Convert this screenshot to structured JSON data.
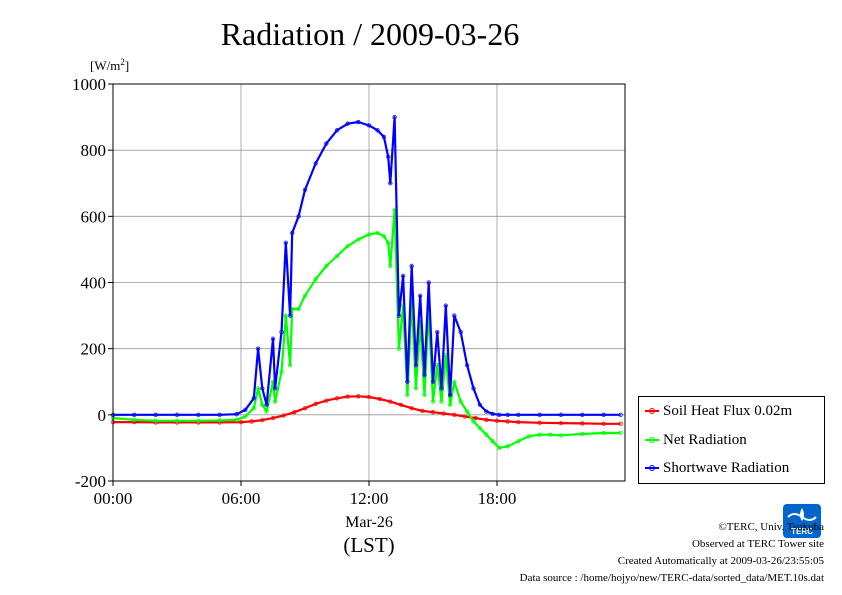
{
  "chart_data": {
    "type": "line",
    "title": "Radiation / 2009-03-26",
    "unit_label": "[W/m2]",
    "unit_base": "[W/m",
    "unit_sup": "2",
    "unit_close": "]",
    "xlabel": "(LST)",
    "date_label": "Mar-26",
    "xlim": [
      0,
      24
    ],
    "ylim": [
      -200,
      1000
    ],
    "xticks": [
      {
        "value": 0,
        "label": "00:00"
      },
      {
        "value": 6,
        "label": "06:00"
      },
      {
        "value": 12,
        "label": "12:00"
      },
      {
        "value": 18,
        "label": "18:00"
      }
    ],
    "yticks": [
      {
        "value": -200,
        "label": "-200"
      },
      {
        "value": 0,
        "label": "0"
      },
      {
        "value": 200,
        "label": "200"
      },
      {
        "value": 400,
        "label": "400"
      },
      {
        "value": 600,
        "label": "600"
      },
      {
        "value": 800,
        "label": "800"
      },
      {
        "value": 1000,
        "label": "1000"
      }
    ],
    "grid": true,
    "legend_position": "right",
    "series": [
      {
        "name": "Soil Heat Flux 0.02m",
        "color": "#ff0000",
        "x": [
          0,
          1,
          2,
          3,
          4,
          5,
          6,
          6.5,
          7,
          7.5,
          8,
          8.5,
          9,
          9.5,
          10,
          10.5,
          11,
          11.5,
          12,
          12.5,
          13,
          13.5,
          14,
          14.5,
          15,
          15.5,
          16,
          16.5,
          17,
          17.5,
          18,
          18.5,
          19,
          20,
          21,
          22,
          23,
          23.8
        ],
        "y": [
          -22,
          -22,
          -23,
          -23,
          -23,
          -23,
          -22,
          -20,
          -16,
          -10,
          -2,
          8,
          20,
          33,
          43,
          50,
          55,
          56,
          54,
          48,
          40,
          30,
          20,
          12,
          8,
          4,
          0,
          -5,
          -10,
          -15,
          -18,
          -20,
          -22,
          -24,
          -25,
          -26,
          -27,
          -27
        ]
      },
      {
        "name": "Net Radiation",
        "color": "#00ff00",
        "x": [
          0,
          1,
          2,
          3,
          4,
          5,
          5.8,
          6.2,
          6.6,
          6.8,
          7.0,
          7.2,
          7.5,
          7.6,
          7.9,
          8.1,
          8.3,
          8.4,
          8.7,
          9,
          9.5,
          10,
          10.5,
          11,
          11.5,
          12,
          12.4,
          12.7,
          12.9,
          13.0,
          13.2,
          13.4,
          13.6,
          13.8,
          14.0,
          14.2,
          14.4,
          14.6,
          14.8,
          15.0,
          15.2,
          15.4,
          15.6,
          15.8,
          16.0,
          16.3,
          16.6,
          16.9,
          17.2,
          17.5,
          17.8,
          18.1,
          18.5,
          19,
          19.5,
          20,
          20.5,
          21,
          22,
          23,
          23.8
        ],
        "y": [
          -10,
          -15,
          -18,
          -18,
          -18,
          -17,
          -15,
          -5,
          20,
          80,
          30,
          10,
          100,
          40,
          130,
          300,
          150,
          320,
          320,
          360,
          410,
          450,
          480,
          510,
          530,
          545,
          550,
          540,
          520,
          450,
          620,
          200,
          330,
          60,
          350,
          80,
          280,
          60,
          320,
          40,
          150,
          40,
          180,
          30,
          100,
          40,
          10,
          -20,
          -40,
          -60,
          -80,
          -100,
          -95,
          -80,
          -65,
          -60,
          -60,
          -62,
          -58,
          -55,
          -55
        ]
      },
      {
        "name": "Shortwave Radiation",
        "color": "#0000ff",
        "x": [
          0,
          1,
          2,
          3,
          4,
          5,
          5.8,
          6.2,
          6.6,
          6.8,
          7.0,
          7.2,
          7.5,
          7.6,
          7.9,
          8.1,
          8.3,
          8.4,
          8.7,
          9,
          9.5,
          10,
          10.5,
          11,
          11.5,
          12,
          12.4,
          12.7,
          12.9,
          13.0,
          13.2,
          13.4,
          13.6,
          13.8,
          14.0,
          14.2,
          14.4,
          14.6,
          14.8,
          15.0,
          15.2,
          15.4,
          15.6,
          15.8,
          16.0,
          16.3,
          16.6,
          16.9,
          17.2,
          17.5,
          17.8,
          18.1,
          18.5,
          19,
          20,
          21,
          22,
          23,
          23.8
        ],
        "y": [
          0,
          0,
          0,
          0,
          0,
          0,
          2,
          15,
          50,
          200,
          80,
          30,
          230,
          80,
          250,
          520,
          300,
          550,
          600,
          680,
          760,
          820,
          860,
          880,
          885,
          875,
          860,
          840,
          780,
          700,
          900,
          300,
          420,
          100,
          450,
          150,
          360,
          120,
          400,
          100,
          250,
          80,
          330,
          60,
          300,
          250,
          150,
          80,
          30,
          10,
          3,
          0,
          0,
          0,
          0,
          0,
          0,
          0,
          0
        ]
      }
    ]
  },
  "footer": {
    "copyright": "©TERC, Univ. Tsukuba",
    "observed": "Observed at TERC Tower site",
    "created": "Created Automatically at 2009-03-26/23:55:05",
    "source": "Data source : /home/hojyo/new/TERC-data/sorted_data/MET.10s.dat"
  },
  "logo": {
    "text": "TERC",
    "color": "#0066cc"
  }
}
